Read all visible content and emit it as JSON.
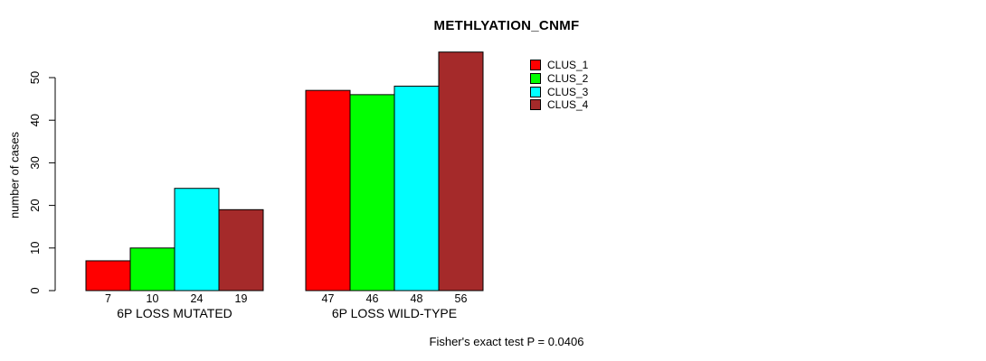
{
  "chart_data": {
    "type": "bar",
    "title": "METHLYATION_CNMF",
    "ylabel": "number of cases",
    "xlabel": "",
    "ylim": [
      0,
      50
    ],
    "yticks": [
      0,
      10,
      20,
      30,
      40,
      50
    ],
    "categories": [
      "6P LOSS MUTATED",
      "6P LOSS WILD-TYPE"
    ],
    "series": [
      {
        "name": "CLUS_1",
        "color": "#FF0000",
        "values": [
          7,
          47
        ]
      },
      {
        "name": "CLUS_2",
        "color": "#00FF00",
        "values": [
          10,
          46
        ]
      },
      {
        "name": "CLUS_3",
        "color": "#00FFFF",
        "values": [
          24,
          48
        ]
      },
      {
        "name": "CLUS_4",
        "color": "#A52A2A",
        "values": [
          19,
          56
        ]
      }
    ],
    "bar_value_labels": [
      7,
      10,
      24,
      19,
      47,
      46,
      48,
      56
    ],
    "legend_position": "top-right",
    "legend_entries": [
      "CLUS_1",
      "CLUS_2",
      "CLUS_3",
      "CLUS_4"
    ],
    "annotation": "Fisher's exact test P = 0.0406",
    "grid": false,
    "bar_border_color": "#000000",
    "background": "#FFFFFF"
  }
}
